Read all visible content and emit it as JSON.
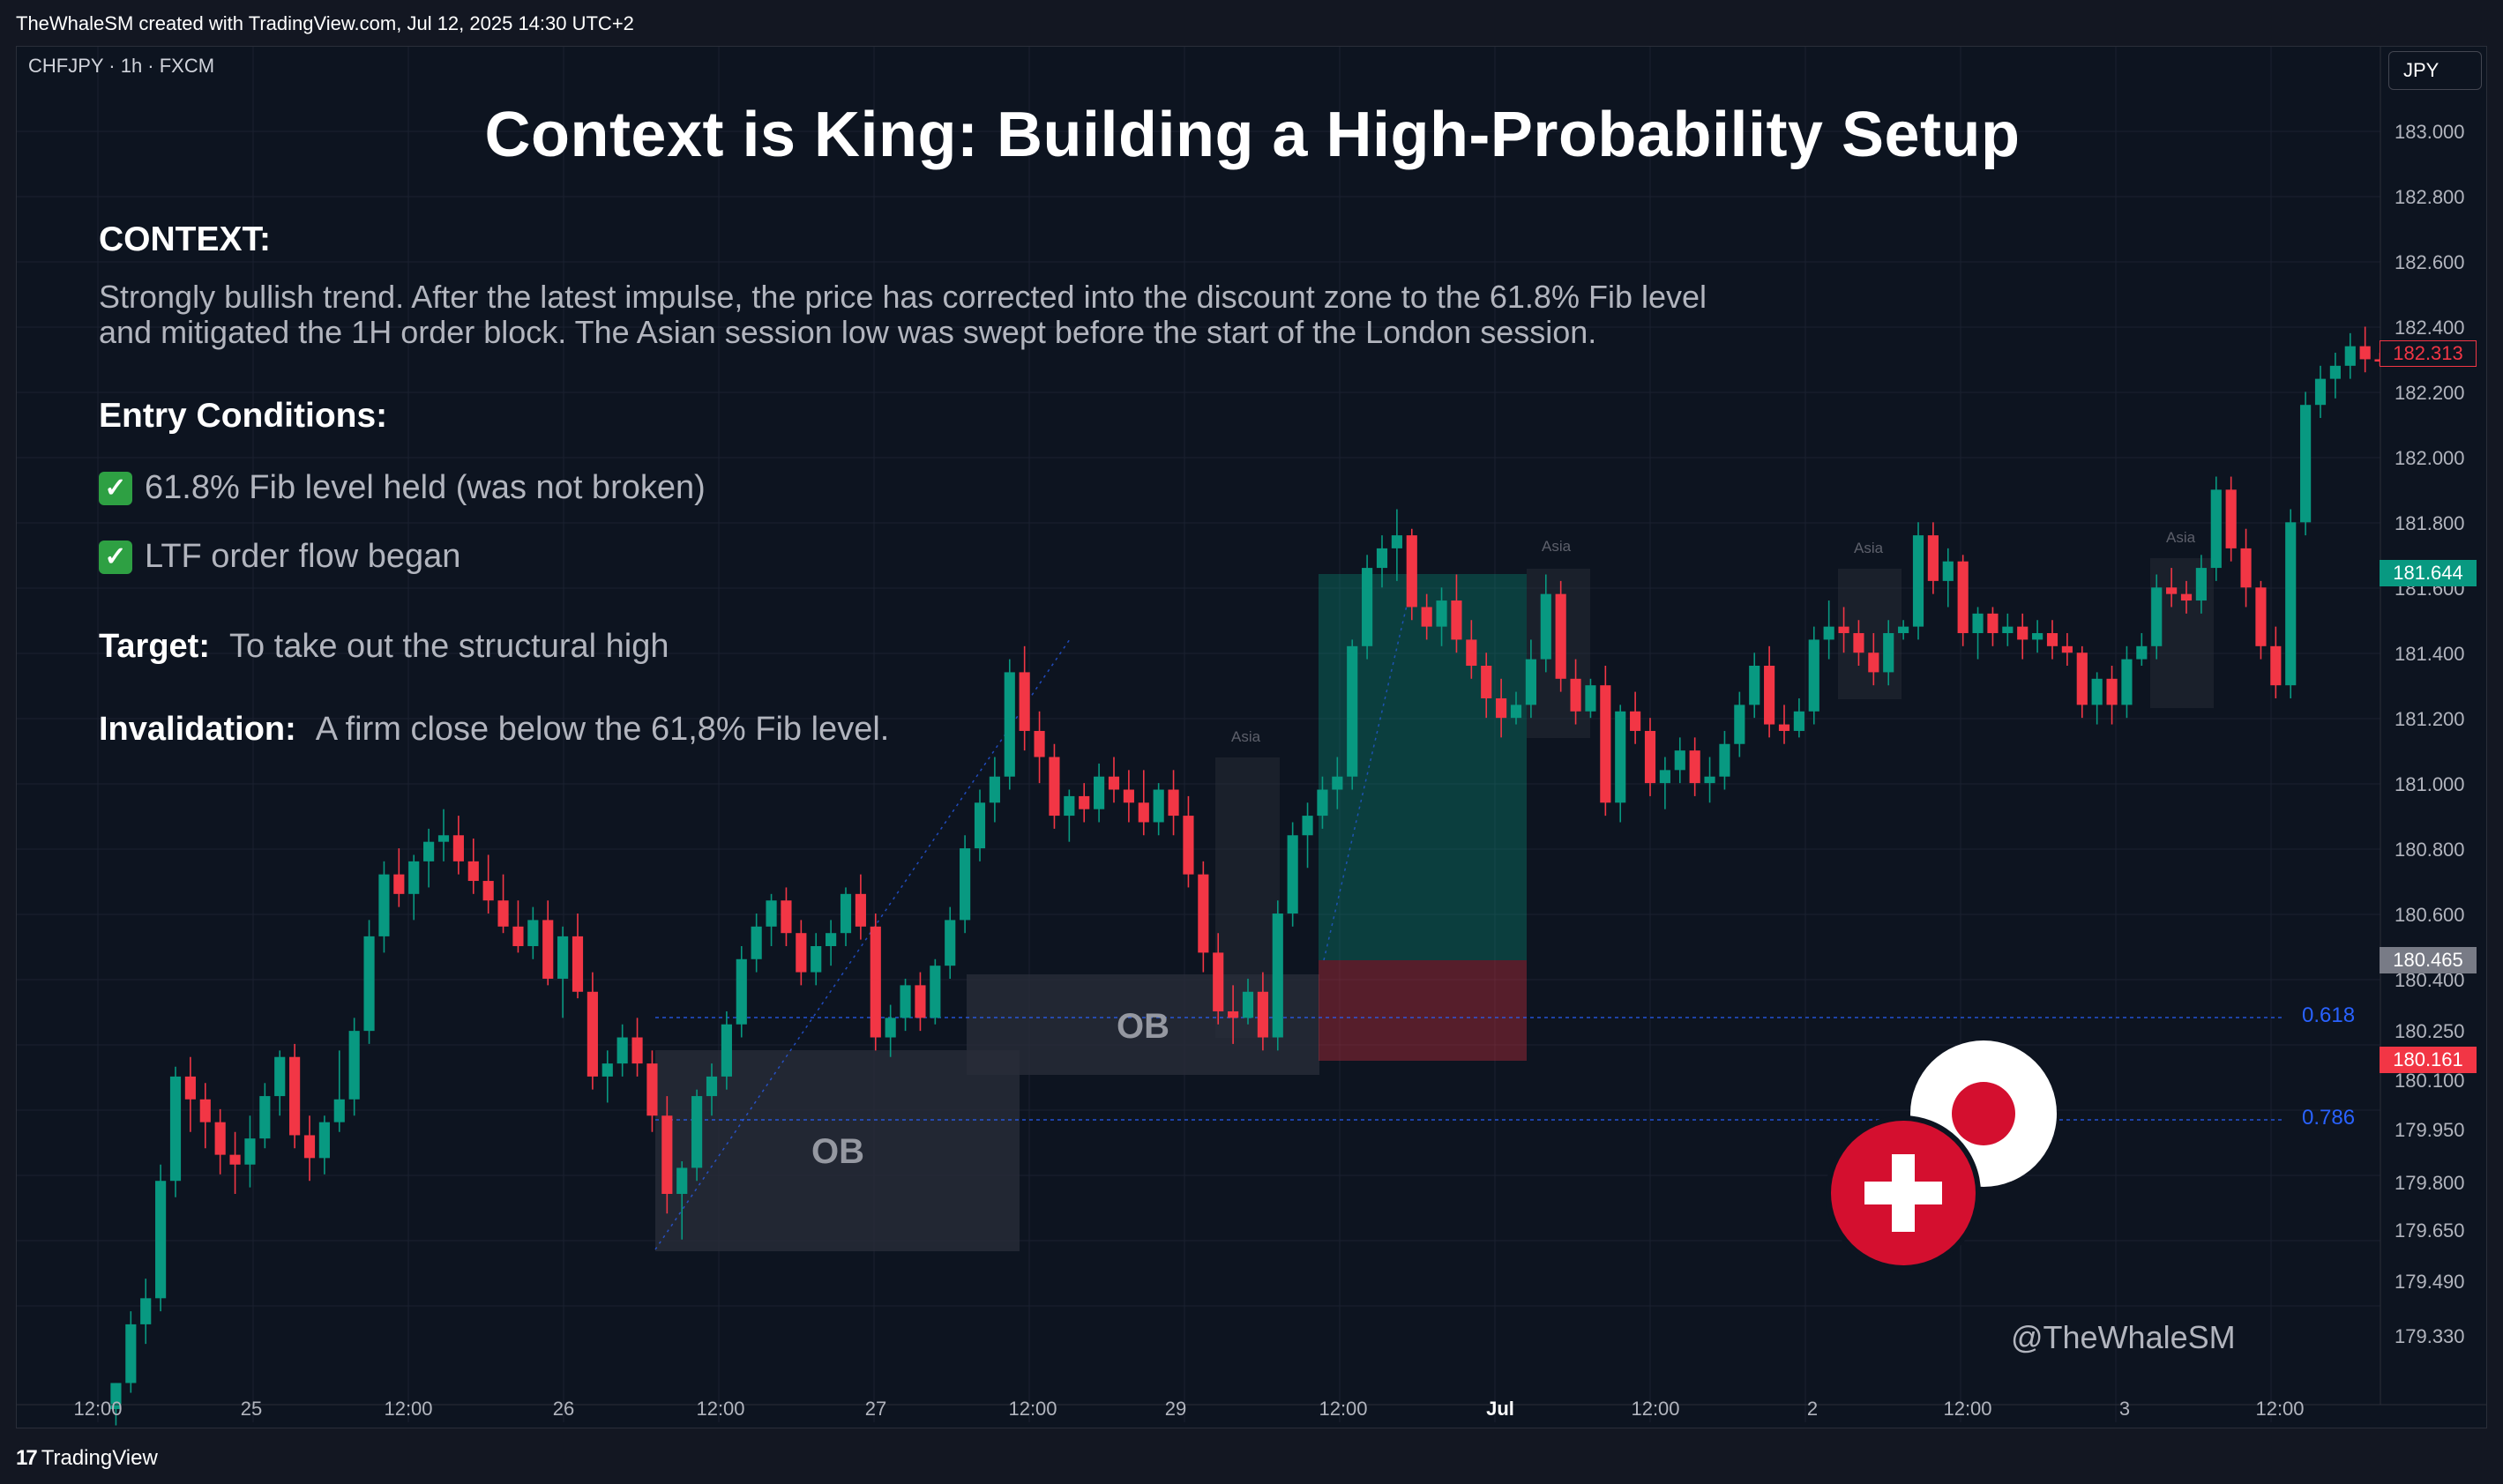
{
  "header": {
    "attribution": "TheWhaleSM created with TradingView.com, Jul 12, 2025 14:30 UTC+2"
  },
  "chart_header": {
    "symbol": "CHFJPY · 1h · FXCM",
    "currency": "JPY"
  },
  "idea": {
    "title": "Context is King: Building a High-Probability Setup",
    "context_heading": "CONTEXT:",
    "context_line1": "Strongly bullish trend. After the latest impulse, the price has corrected into the discount zone to the 61.8% Fib level",
    "context_line2": "and mitigated the 1H order block. The Asian session low was swept before the start of the London session.",
    "entry_heading": "Entry Conditions:",
    "condition1": "61.8% Fib level held (was not broken)",
    "condition2": "LTF order flow began",
    "check_icon": "check-mark-icon",
    "target_label": "Target:",
    "target_text": "To take out the structural high",
    "invalidation_label": "Invalidation:",
    "invalidation_text": "A firm close below the 61,8% Fib level."
  },
  "annotations": {
    "ob1": "OB",
    "ob2": "OB",
    "asia": "Asia",
    "fib_618": "0.618",
    "fib_786": "0.786",
    "watermark": "@TheWhaleSM",
    "flags": [
      "swiss-flag-icon",
      "japan-flag-icon"
    ]
  },
  "price_tags": {
    "last": "182.313",
    "tp": "181.644",
    "entry": "180.465",
    "sl": "180.161"
  },
  "footer": {
    "brand": "TradingView"
  },
  "colors": {
    "up": "#089981",
    "down": "#f23645",
    "fib": "#2962ff",
    "background": "#0d1420"
  },
  "chart_data": {
    "type": "candlestick",
    "symbol": "CHFJPY",
    "timeframe": "1h",
    "y_ticks": [
      "183.000",
      "182.800",
      "182.600",
      "182.400",
      "182.200",
      "182.000",
      "181.800",
      "181.600",
      "181.400",
      "181.200",
      "181.000",
      "180.800",
      "180.600",
      "180.400",
      "180.250",
      "180.100",
      "179.950",
      "179.800",
      "179.650",
      "179.490",
      "179.330"
    ],
    "x_ticks": [
      "12:00",
      "25",
      "12:00",
      "26",
      "12:00",
      "27",
      "12:00",
      "29",
      "12:00",
      "Jul",
      "12:00",
      "2",
      "12:00",
      "3",
      "12:00"
    ],
    "fib_levels": [
      {
        "label": "0.618",
        "value": 180.25
      },
      {
        "label": "0.786",
        "value": 179.95
      }
    ],
    "position": {
      "entry": 180.465,
      "take_profit": 181.644,
      "stop_loss": 180.161
    },
    "last_price": 182.313,
    "candles": [
      [
        179.1,
        179.18,
        179.05,
        179.18
      ],
      [
        179.18,
        179.4,
        179.15,
        179.36
      ],
      [
        179.36,
        179.5,
        179.3,
        179.44
      ],
      [
        179.44,
        179.85,
        179.4,
        179.8
      ],
      [
        179.8,
        180.15,
        179.75,
        180.12
      ],
      [
        180.12,
        180.18,
        179.95,
        180.05
      ],
      [
        180.05,
        180.1,
        179.9,
        179.98
      ],
      [
        179.98,
        180.02,
        179.82,
        179.88
      ],
      [
        179.88,
        179.95,
        179.76,
        179.85
      ],
      [
        179.85,
        180.0,
        179.78,
        179.93
      ],
      [
        179.93,
        180.1,
        179.9,
        180.06
      ],
      [
        180.06,
        180.2,
        180.0,
        180.18
      ],
      [
        180.18,
        180.22,
        179.9,
        179.94
      ],
      [
        179.94,
        180.0,
        179.8,
        179.87
      ],
      [
        179.87,
        180.0,
        179.82,
        179.98
      ],
      [
        179.98,
        180.2,
        179.95,
        180.05
      ],
      [
        180.05,
        180.3,
        180.0,
        180.26
      ],
      [
        180.26,
        180.6,
        180.22,
        180.55
      ],
      [
        180.55,
        180.78,
        180.5,
        180.74
      ],
      [
        180.74,
        180.82,
        180.64,
        180.68
      ],
      [
        180.68,
        180.8,
        180.6,
        180.78
      ],
      [
        180.78,
        180.88,
        180.7,
        180.84
      ],
      [
        180.84,
        180.94,
        180.78,
        180.86
      ],
      [
        180.86,
        180.92,
        180.74,
        180.78
      ],
      [
        180.78,
        180.85,
        180.68,
        180.72
      ],
      [
        180.72,
        180.8,
        180.62,
        180.66
      ],
      [
        180.66,
        180.74,
        180.56,
        180.58
      ],
      [
        180.58,
        180.66,
        180.5,
        180.52
      ],
      [
        180.52,
        180.64,
        180.48,
        180.6
      ],
      [
        180.6,
        180.66,
        180.4,
        180.42
      ],
      [
        180.42,
        180.58,
        180.3,
        180.55
      ],
      [
        180.55,
        180.62,
        180.36,
        180.38
      ],
      [
        180.38,
        180.44,
        180.08,
        180.12
      ],
      [
        180.12,
        180.2,
        180.04,
        180.16
      ],
      [
        180.16,
        180.28,
        180.12,
        180.24
      ],
      [
        180.24,
        180.3,
        180.12,
        180.16
      ],
      [
        180.16,
        180.2,
        179.95,
        180.0
      ],
      [
        180.0,
        180.06,
        179.7,
        179.76
      ],
      [
        179.76,
        179.86,
        179.62,
        179.84
      ],
      [
        179.84,
        180.08,
        179.8,
        180.06
      ],
      [
        180.06,
        180.16,
        180.0,
        180.12
      ],
      [
        180.12,
        180.32,
        180.08,
        180.28
      ],
      [
        180.28,
        180.52,
        180.24,
        180.48
      ],
      [
        180.48,
        180.62,
        180.44,
        180.58
      ],
      [
        180.58,
        180.68,
        180.52,
        180.66
      ],
      [
        180.66,
        180.7,
        180.52,
        180.56
      ],
      [
        180.56,
        180.6,
        180.4,
        180.44
      ],
      [
        180.44,
        180.56,
        180.4,
        180.52
      ],
      [
        180.52,
        180.6,
        180.46,
        180.56
      ],
      [
        180.56,
        180.7,
        180.52,
        180.68
      ],
      [
        180.68,
        180.74,
        180.54,
        180.58
      ],
      [
        180.58,
        180.62,
        180.2,
        180.24
      ],
      [
        180.24,
        180.34,
        180.18,
        180.3
      ],
      [
        180.3,
        180.42,
        180.26,
        180.4
      ],
      [
        180.4,
        180.44,
        180.26,
        180.3
      ],
      [
        180.3,
        180.48,
        180.28,
        180.46
      ],
      [
        180.46,
        180.64,
        180.42,
        180.6
      ],
      [
        180.6,
        180.86,
        180.56,
        180.82
      ],
      [
        180.82,
        181.0,
        180.78,
        180.96
      ],
      [
        180.96,
        181.1,
        180.9,
        181.04
      ],
      [
        181.04,
        181.4,
        181.0,
        181.36
      ],
      [
        181.36,
        181.44,
        181.12,
        181.18
      ],
      [
        181.18,
        181.24,
        181.02,
        181.1
      ],
      [
        181.1,
        181.14,
        180.88,
        180.92
      ],
      [
        180.92,
        181.0,
        180.84,
        180.98
      ],
      [
        180.98,
        181.02,
        180.9,
        180.94
      ],
      [
        180.94,
        181.08,
        180.9,
        181.04
      ],
      [
        181.04,
        181.1,
        180.96,
        181.0
      ],
      [
        181.0,
        181.06,
        180.9,
        180.96
      ],
      [
        180.96,
        181.06,
        180.86,
        180.9
      ],
      [
        180.9,
        181.02,
        180.86,
        181.0
      ],
      [
        181.0,
        181.06,
        180.86,
        180.92
      ],
      [
        180.92,
        180.98,
        180.7,
        180.74
      ],
      [
        180.74,
        180.78,
        180.44,
        180.5
      ],
      [
        180.5,
        180.56,
        180.28,
        180.32
      ],
      [
        180.32,
        180.4,
        180.22,
        180.3
      ],
      [
        180.3,
        180.42,
        180.28,
        180.38
      ],
      [
        180.38,
        180.44,
        180.2,
        180.24
      ],
      [
        180.24,
        180.66,
        180.2,
        180.62
      ],
      [
        180.62,
        180.9,
        180.58,
        180.86
      ],
      [
        180.86,
        180.96,
        180.76,
        180.92
      ],
      [
        180.92,
        181.04,
        180.88,
        181.0
      ],
      [
        181.0,
        181.1,
        180.94,
        181.04
      ],
      [
        181.04,
        181.46,
        181.0,
        181.44
      ],
      [
        181.44,
        181.72,
        181.4,
        181.68
      ],
      [
        181.68,
        181.78,
        181.62,
        181.74
      ],
      [
        181.74,
        181.86,
        181.64,
        181.78
      ],
      [
        181.78,
        181.8,
        181.52,
        181.56
      ],
      [
        181.56,
        181.6,
        181.46,
        181.5
      ],
      [
        181.5,
        181.62,
        181.44,
        181.58
      ],
      [
        181.58,
        181.66,
        181.42,
        181.46
      ],
      [
        181.46,
        181.52,
        181.34,
        181.38
      ],
      [
        181.38,
        181.42,
        181.22,
        181.28
      ],
      [
        181.28,
        181.34,
        181.16,
        181.22
      ],
      [
        181.22,
        181.3,
        181.2,
        181.26
      ],
      [
        181.26,
        181.46,
        181.22,
        181.4
      ],
      [
        181.4,
        181.66,
        181.36,
        181.6
      ],
      [
        181.6,
        181.64,
        181.3,
        181.34
      ],
      [
        181.34,
        181.4,
        181.2,
        181.24
      ],
      [
        181.24,
        181.34,
        181.22,
        181.32
      ],
      [
        181.32,
        181.38,
        180.92,
        180.96
      ],
      [
        180.96,
        181.26,
        180.9,
        181.24
      ],
      [
        181.24,
        181.3,
        181.14,
        181.18
      ],
      [
        181.18,
        181.22,
        180.98,
        181.02
      ],
      [
        181.02,
        181.1,
        180.94,
        181.06
      ],
      [
        181.06,
        181.16,
        181.02,
        181.12
      ],
      [
        181.12,
        181.16,
        180.98,
        181.02
      ],
      [
        181.02,
        181.1,
        180.96,
        181.04
      ],
      [
        181.04,
        181.18,
        181.0,
        181.14
      ],
      [
        181.14,
        181.3,
        181.1,
        181.26
      ],
      [
        181.26,
        181.42,
        181.22,
        181.38
      ],
      [
        181.38,
        181.44,
        181.16,
        181.2
      ],
      [
        181.2,
        181.26,
        181.14,
        181.18
      ],
      [
        181.18,
        181.28,
        181.16,
        181.24
      ],
      [
        181.24,
        181.5,
        181.2,
        181.46
      ],
      [
        181.46,
        181.58,
        181.4,
        181.5
      ],
      [
        181.5,
        181.56,
        181.42,
        181.48
      ],
      [
        181.48,
        181.52,
        181.38,
        181.42
      ],
      [
        181.42,
        181.48,
        181.32,
        181.36
      ],
      [
        181.36,
        181.52,
        181.32,
        181.48
      ],
      [
        181.48,
        181.52,
        181.46,
        181.5
      ],
      [
        181.5,
        181.82,
        181.46,
        181.78
      ],
      [
        181.78,
        181.82,
        181.6,
        181.64
      ],
      [
        181.64,
        181.74,
        181.56,
        181.7
      ],
      [
        181.7,
        181.72,
        181.44,
        181.48
      ],
      [
        181.48,
        181.56,
        181.4,
        181.54
      ],
      [
        181.54,
        181.56,
        181.44,
        181.48
      ],
      [
        181.48,
        181.54,
        181.44,
        181.5
      ],
      [
        181.5,
        181.54,
        181.4,
        181.46
      ],
      [
        181.46,
        181.52,
        181.42,
        181.48
      ],
      [
        181.48,
        181.52,
        181.4,
        181.44
      ],
      [
        181.44,
        181.48,
        181.38,
        181.42
      ],
      [
        181.42,
        181.44,
        181.22,
        181.26
      ],
      [
        181.26,
        181.36,
        181.2,
        181.34
      ],
      [
        181.34,
        181.38,
        181.2,
        181.26
      ],
      [
        181.26,
        181.44,
        181.22,
        181.4
      ],
      [
        181.4,
        181.48,
        181.38,
        181.44
      ],
      [
        181.44,
        181.66,
        181.4,
        181.62
      ],
      [
        181.62,
        181.68,
        181.56,
        181.6
      ],
      [
        181.6,
        181.64,
        181.54,
        181.58
      ],
      [
        181.58,
        181.72,
        181.54,
        181.68
      ],
      [
        181.68,
        181.96,
        181.64,
        181.92
      ],
      [
        181.92,
        181.96,
        181.7,
        181.74
      ],
      [
        181.74,
        181.8,
        181.56,
        181.62
      ],
      [
        181.62,
        181.64,
        181.4,
        181.44
      ],
      [
        181.44,
        181.5,
        181.28,
        181.32
      ],
      [
        181.32,
        181.86,
        181.28,
        181.82
      ],
      [
        181.82,
        182.22,
        181.78,
        182.18
      ],
      [
        182.18,
        182.3,
        182.14,
        182.26
      ],
      [
        182.26,
        182.34,
        182.2,
        182.3
      ],
      [
        182.3,
        182.4,
        182.26,
        182.36
      ],
      [
        182.36,
        182.42,
        182.28,
        182.32
      ],
      [
        182.32,
        182.34,
        182.3,
        182.313
      ]
    ]
  }
}
